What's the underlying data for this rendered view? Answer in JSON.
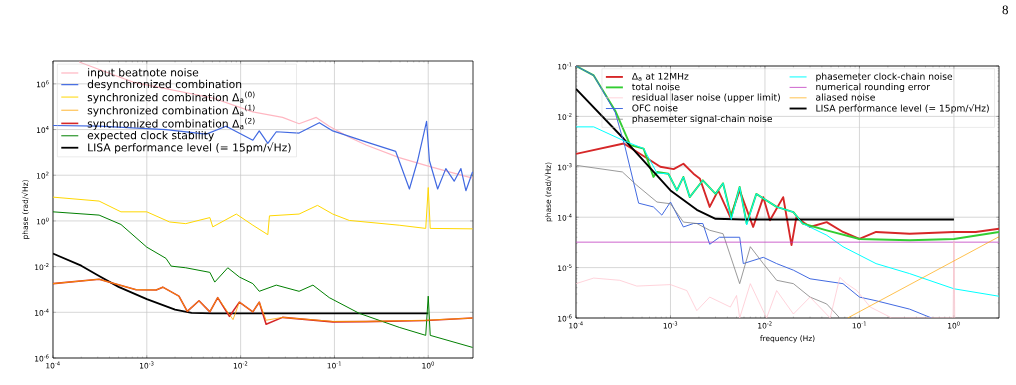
{
  "chart_data": [
    {
      "type": "line",
      "log": "xy",
      "grid": true,
      "legend": "top left",
      "ylabel": "phase (rad/√Hz)",
      "xlim": [
        0.0001,
        3
      ],
      "ylim": [
        1e-06,
        10000000.0
      ],
      "xticks": [
        {
          "value": 0.0001,
          "label": "10$^{-4}$"
        },
        {
          "value": 0.001,
          "label": "10$^{-3}$"
        },
        {
          "value": 0.01,
          "label": "10$^{-2}$"
        },
        {
          "value": 0.1,
          "label": "10$^{-1}$"
        },
        {
          "value": 1,
          "label": "10$^{0}$"
        }
      ],
      "yticks": [
        {
          "value": 1e-06,
          "label": "10$^{-6}$"
        },
        {
          "value": 0.0001,
          "label": "10$^{-4}$"
        },
        {
          "value": 0.01,
          "label": "10$^{-2}$"
        },
        {
          "value": 1,
          "label": "10$^{0}$"
        },
        {
          "value": 100,
          "label": "10$^{2}$"
        },
        {
          "value": 10000,
          "label": "10$^{4}$"
        },
        {
          "value": 1000000,
          "label": "10$^{6}$"
        }
      ],
      "series": [
        {
          "name": "input beatnote noise",
          "color": "#ffb6c1",
          "x": [
            0.00019,
            0.00071,
            0.00506,
            0.0135,
            0.028,
            0.042,
            0.064,
            0.088,
            0.144,
            0.217,
            0.49,
            0.94,
            1.67,
            2.97
          ],
          "values": [
            9000000.0,
            1200000.0,
            240000.0,
            59000.0,
            34000.0,
            18000.0,
            34000.0,
            14000.0,
            4600,
            2100,
            590,
            270,
            141,
            75
          ]
        },
        {
          "name": "desynchronized combination",
          "color": "#4169e1",
          "x": [
            0.0001,
            0.00031,
            0.0016,
            0.0043,
            0.007,
            0.0135,
            0.0158,
            0.0195,
            0.024,
            0.042,
            0.069,
            0.096,
            0.217,
            0.45,
            0.63,
            0.77,
            0.96,
            1.03,
            1.26,
            1.54,
            1.89,
            2.23,
            2.52,
            2.97
          ],
          "values": [
            15000.0,
            14000.0,
            10000.0,
            6300,
            14000.0,
            3400,
            8700,
            2500,
            8000,
            7000,
            20000.0,
            8700,
            2900,
            1100,
            25,
            430,
            23000.0,
            430,
            25,
            195,
            55,
            195,
            21,
            141
          ]
        },
        {
          "name": "synchronized combination Δ$_{a}$$^{(0)}$",
          "color": "#ffd700",
          "x": [
            0.0001,
            0.00031,
            0.00053,
            0.001,
            0.00175,
            0.0026,
            0.0047,
            0.00505,
            0.009,
            0.0135,
            0.0195,
            0.0203,
            0.042,
            0.066,
            0.096,
            0.144,
            0.49,
            0.94,
            1.0,
            1.05,
            2.97
          ],
          "values": [
            11,
            7.4,
            2.5,
            2.5,
            0.9,
            0.76,
            1.4,
            0.55,
            2.0,
            0.65,
            0.25,
            1.67,
            2.0,
            4.8,
            2.0,
            1.05,
            0.65,
            0.47,
            29,
            0.47,
            0.45
          ]
        },
        {
          "name": "synchronized combination Δ$_{a}$$^{(1)}$",
          "color": "#ffa500",
          "x": [
            0.0001,
            0.00031,
            0.00077,
            0.00126,
            0.00148,
            0.0022,
            0.0027,
            0.0036,
            0.0047,
            0.0057,
            0.0083,
            0.0097,
            0.0135,
            0.0158,
            0.0187,
            0.028,
            0.096,
            0.217,
            0.94,
            2.97
          ],
          "values": [
            0.0018,
            0.0028,
            0.00097,
            0.00095,
            0.00126,
            0.00051,
            0.00011,
            0.00032,
            0.000105,
            0.00044,
            4.8e-05,
            0.00028,
            0.000105,
            0.00028,
            4.5e-05,
            6e-05,
            4e-05,
            4e-05,
            4.5e-05,
            5.6e-05
          ]
        },
        {
          "name": "synchronized combination Δ$_{a}$$^{(2)}$",
          "color": "#d62728",
          "x": [
            0.0001,
            0.00031,
            0.00077,
            0.00126,
            0.00148,
            0.0022,
            0.0027,
            0.0036,
            0.0047,
            0.0057,
            0.0076,
            0.0097,
            0.0135,
            0.0158,
            0.0187,
            0.028,
            0.096,
            0.217,
            0.94,
            2.97
          ],
          "values": [
            0.0018,
            0.0028,
            0.00097,
            0.00095,
            0.00126,
            0.00051,
            0.00011,
            0.00032,
            0.000105,
            0.00044,
            6.6e-05,
            0.00028,
            0.000105,
            0.00028,
            3e-05,
            6e-05,
            3.8e-05,
            3.9e-05,
            4.4e-05,
            5.6e-05
          ]
        },
        {
          "name": "expected clock stability",
          "color": "#008000",
          "x": [
            0.0001,
            0.00031,
            0.00053,
            0.001,
            0.0016,
            0.00182,
            0.0026,
            0.0047,
            0.0053,
            0.0073,
            0.0097,
            0.0135,
            0.0158,
            0.024,
            0.042,
            0.059,
            0.088,
            0.184,
            0.49,
            0.94,
            1.0,
            1.05,
            2.97
          ],
          "values": [
            2.5,
            1.8,
            0.7,
            0.071,
            0.023,
            0.0105,
            0.0089,
            0.0056,
            0.0021,
            0.0089,
            0.0035,
            0.0018,
            0.00083,
            0.00155,
            0.00083,
            0.00155,
            0.00044,
            9e-05,
            2.2e-05,
            9.8e-06,
            0.00051,
            9.8e-06,
            2.9e-06
          ]
        },
        {
          "name": "LISA performance level (= 15pm/√Hz)",
          "color": "#000000",
          "x": [
            0.0001,
            0.0002,
            0.0003,
            0.0005,
            0.001,
            0.002,
            0.003,
            0.005,
            1.0
          ],
          "values": [
            0.037,
            0.011,
            0.0042,
            0.0013,
            0.00038,
            0.00013,
            9.5e-05,
            9e-05,
            9e-05
          ]
        }
      ]
    },
    {
      "type": "line",
      "log": "xy",
      "grid": true,
      "legend": "top right",
      "xlabel": "frequency (Hz)",
      "ylabel": "phase (rad/√Hz)",
      "xlim": [
        0.0001,
        3
      ],
      "ylim": [
        1e-06,
        0.1
      ],
      "xticks": [
        {
          "value": 0.0001,
          "label": "10$^{-4}$"
        },
        {
          "value": 0.001,
          "label": "10$^{-3}$"
        },
        {
          "value": 0.01,
          "label": "10$^{-2}$"
        },
        {
          "value": 0.1,
          "label": "10$^{-1}$"
        },
        {
          "value": 1,
          "label": "10$^{0}$"
        }
      ],
      "yticks": [
        {
          "value": 1e-06,
          "label": "10$^{-6}$"
        },
        {
          "value": 1e-05,
          "label": "10$^{-5}$"
        },
        {
          "value": 0.0001,
          "label": "10$^{-4}$"
        },
        {
          "value": 0.001,
          "label": "10$^{-3}$"
        },
        {
          "value": 0.01,
          "label": "10$^{-2}$"
        },
        {
          "value": 0.1,
          "label": "10$^{-1}$"
        }
      ],
      "annotations": [
        "8"
      ],
      "series": [
        {
          "name": "Δ$_{a}$ at 12MHz",
          "color": "#d62728",
          "x": [
            0.0001,
            0.00032,
            0.00061,
            0.00078,
            0.00108,
            0.00137,
            0.00175,
            0.00205,
            0.0026,
            0.0032,
            0.0043,
            0.0054,
            0.0075,
            0.0096,
            0.0113,
            0.0156,
            0.0191,
            0.0215,
            0.03,
            0.045,
            0.067,
            0.1,
            0.15,
            0.34,
            1.0,
            1.7,
            3.0
          ],
          "values": [
            0.0018,
            0.0029,
            0.00135,
            0.001,
            0.0009,
            0.00115,
            0.00073,
            0.00058,
            0.00016,
            0.00034,
            0.0001,
            0.00034,
            6.4e-05,
            0.00025,
            8.7e-05,
            0.00025,
            2.8e-05,
            0.0001,
            6.4e-05,
            8e-05,
            5.1e-05,
            3.7e-05,
            5.1e-05,
            4.7e-05,
            5.1e-05,
            5.1e-05,
            5.9e-05
          ]
        },
        {
          "name": "total noise",
          "color": "#32cd32",
          "x": [
            0.0001,
            0.000154,
            0.00026,
            0.000375,
            0.00052,
            0.00066,
            0.00072,
            0.00095,
            0.00117,
            0.00137,
            0.0016,
            0.0022,
            0.003,
            0.0036,
            0.0044,
            0.0054,
            0.0064,
            0.0081,
            0.0133,
            0.02,
            0.025,
            0.045,
            0.1,
            0.34,
            1.0,
            3.0
          ],
          "values": [
            0.1,
            0.065,
            0.013,
            0.0027,
            0.0023,
            0.00063,
            0.00079,
            0.00073,
            0.00034,
            0.00063,
            0.00025,
            0.00054,
            0.00029,
            0.00047,
            0.0001,
            0.0004,
            7.5e-05,
            0.00029,
            0.00016,
            0.000126,
            7.5e-05,
            5.5e-05,
            3.7e-05,
            3.5e-05,
            3.7e-05,
            5.1e-05
          ]
        },
        {
          "name": "residual laser noise (upper limit)",
          "color": "#ffc0cb",
          "x": [
            0.0001,
            0.000154,
            0.00029,
            0.00044,
            0.001,
            0.00149,
            0.0019,
            0.0026,
            0.0043,
            0.005,
            0.0054,
            0.007,
            0.0104,
            0.0133,
            0.02,
            0.03,
            0.049,
            0.062,
            0.073,
            0.094,
            0.13,
            0.22,
            0.98,
            1.0,
            1.02
          ],
          "values": [
            4.8e-06,
            6.2e-06,
            5.6e-06,
            4.3e-06,
            4.6e-06,
            3.5e-06,
            1.4e-06,
            2.6e-06,
            1.65e-06,
            2.8e-06,
            1e-06,
            4.8e-06,
            1e-06,
            3.5e-06,
            1.2e-06,
            2.6e-06,
            1e-06,
            6.4e-06,
            4.8e-06,
            3.5e-06,
            1.65e-06,
            1e-06,
            1e-06,
            3.3e-05,
            1e-06
          ]
        },
        {
          "name": "OFC noise",
          "color": "#4169e1",
          "x": [
            0.0001,
            0.000154,
            0.00026,
            0.00033,
            0.00046,
            0.00066,
            0.00081,
            0.001,
            0.00137,
            0.00175,
            0.0022,
            0.0026,
            0.0033,
            0.0054,
            0.0059,
            0.0096,
            0.0133,
            0.02,
            0.03,
            0.067,
            0.1,
            0.15,
            0.34,
            0.58
          ],
          "values": [
            0.1,
            0.065,
            0.012,
            0.0025,
            0.00019,
            0.00016,
            0.00011,
            0.0002,
            6.4e-05,
            7.5e-05,
            7.5e-05,
            2.9e-05,
            4e-05,
            4e-05,
            1.2e-05,
            1.6e-05,
            1.2e-05,
            8.9e-06,
            6e-06,
            4.8e-06,
            2.6e-06,
            2.2e-06,
            1.5e-06,
            1e-06
          ]
        },
        {
          "name": "phasemeter signal-chain noise",
          "color": "#808080",
          "x": [
            0.0001,
            0.00031,
            0.00044,
            0.00072,
            0.001,
            0.00137,
            0.0019,
            0.0026,
            0.0036,
            0.0054,
            0.007,
            0.0096,
            0.0133,
            0.02,
            0.03,
            0.045,
            0.062
          ],
          "values": [
            0.00107,
            0.00079,
            0.00043,
            0.0002,
            0.000185,
            8e-05,
            7.5e-05,
            5.5e-05,
            4.7e-05,
            4.8e-06,
            2.6e-05,
            1.2e-05,
            5.6e-06,
            4.8e-06,
            2.6e-06,
            1.9e-06,
            1e-06
          ]
        },
        {
          "name": "phasemeter clock-chain noise",
          "color": "#00ffff",
          "x": [
            0.0001,
            0.000154,
            0.00032,
            0.00052,
            0.00072,
            0.00095,
            0.00117,
            0.00137,
            0.0016,
            0.0022,
            0.003,
            0.0036,
            0.0044,
            0.0054,
            0.0064,
            0.0081,
            0.0133,
            0.02,
            0.025,
            0.045,
            0.067,
            0.15,
            0.34,
            1.0,
            3.0
          ],
          "values": [
            0.0062,
            0.0062,
            0.0033,
            0.0023,
            0.00075,
            0.00073,
            0.00034,
            0.00063,
            0.00025,
            0.00054,
            0.00029,
            0.00047,
            9e-05,
            0.0004,
            7e-05,
            0.00029,
            0.00016,
            0.000126,
            7.5e-05,
            4.4e-05,
            2.6e-05,
            1.2e-05,
            7.6e-06,
            3.8e-06,
            2.7e-06
          ]
        },
        {
          "name": "numerical rounding error",
          "color": "#c03cc0",
          "x": [
            0.0001,
            3.0
          ],
          "values": [
            3.2e-05,
            3.2e-05
          ]
        },
        {
          "name": "aliased noise",
          "color": "#ffa500",
          "x": [
            0.075,
            3.0
          ],
          "values": [
            1e-06,
            4.1e-05
          ]
        },
        {
          "name": "LISA performance level (= 15pm/√Hz)",
          "color": "#000000",
          "x": [
            0.0001,
            0.00032,
            0.001,
            0.0019,
            0.003,
            0.0059,
            1.0
          ],
          "values": [
            0.035,
            0.0036,
            0.00034,
            0.00014,
            9.3e-05,
            9e-05,
            9e-05
          ]
        }
      ]
    }
  ]
}
